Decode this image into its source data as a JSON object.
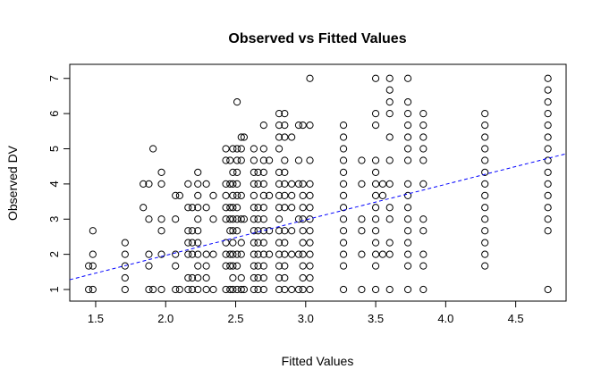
{
  "chart_data": {
    "type": "scatter",
    "title": "Observed vs Fitted Values",
    "xlabel": "Fitted Values",
    "ylabel": "Observed DV",
    "xlim": [
      1.315,
      4.86
    ],
    "ylim": [
      0.67,
      7.4
    ],
    "xticks": [
      1.5,
      2.0,
      2.5,
      3.0,
      3.5,
      4.0,
      4.5
    ],
    "xtick_labels": [
      "1.5",
      "2.0",
      "2.5",
      "3.0",
      "3.5",
      "4.0",
      "4.5"
    ],
    "yticks": [
      1,
      2,
      3,
      4,
      5,
      6,
      7
    ],
    "ytick_labels": [
      "1",
      "2",
      "3",
      "4",
      "5",
      "6",
      "7"
    ],
    "grid": false,
    "point_color": "#000000",
    "line_color": "#0000ff",
    "reference_line": {
      "intercept": -0.05,
      "slope": 1.01,
      "style": "dashed"
    },
    "columns": [
      {
        "x": 1.45,
        "y": [
          1.67,
          1
        ]
      },
      {
        "x": 1.48,
        "y": [
          2.67,
          2,
          1.67,
          1
        ]
      },
      {
        "x": 1.71,
        "y": [
          2.33,
          2,
          1.67,
          1.33,
          1
        ]
      },
      {
        "x": 1.84,
        "y": [
          4,
          3.33
        ]
      },
      {
        "x": 1.88,
        "y": [
          4,
          3,
          2,
          1.67,
          1
        ]
      },
      {
        "x": 1.91,
        "y": [
          5,
          1
        ]
      },
      {
        "x": 1.97,
        "y": [
          4.33,
          4,
          3,
          2.67,
          2,
          1
        ]
      },
      {
        "x": 2.07,
        "y": [
          3.67,
          3,
          2,
          1.67,
          1
        ]
      },
      {
        "x": 2.1,
        "y": [
          3.67,
          1
        ]
      },
      {
        "x": 2.16,
        "y": [
          4,
          3.33,
          2.67,
          2.33,
          2,
          1.33,
          1
        ]
      },
      {
        "x": 2.19,
        "y": [
          3.33,
          2.67,
          2.33,
          2,
          1.33,
          1
        ]
      },
      {
        "x": 2.23,
        "y": [
          4.33,
          4,
          3.67,
          3.33,
          3,
          2.67,
          2.33,
          2,
          1.67,
          1.33,
          1
        ]
      },
      {
        "x": 2.29,
        "y": [
          4,
          3.33,
          2,
          1.67,
          1.33,
          1
        ]
      },
      {
        "x": 2.34,
        "y": [
          3.67,
          3,
          2,
          1
        ]
      },
      {
        "x": 2.43,
        "y": [
          5,
          4.67,
          4,
          3.67,
          3.33,
          3,
          2.33,
          2,
          1.67,
          1
        ]
      },
      {
        "x": 2.46,
        "y": [
          4.67,
          4,
          3.33,
          3,
          2.67,
          2,
          1.67,
          1
        ]
      },
      {
        "x": 2.48,
        "y": [
          5,
          4.33,
          4,
          3.67,
          3.33,
          3,
          2.67,
          2.33,
          2,
          1.67,
          1.33,
          1
        ]
      },
      {
        "x": 2.51,
        "y": [
          6.33,
          5,
          4.67,
          4.33,
          4,
          3.67,
          3.33,
          3,
          2.67,
          2,
          1.67,
          1
        ]
      },
      {
        "x": 2.54,
        "y": [
          5.33,
          5,
          4.67,
          3.67,
          3,
          2.33,
          2,
          1.33,
          1
        ]
      },
      {
        "x": 2.56,
        "y": [
          5.33,
          3,
          1
        ]
      },
      {
        "x": 2.63,
        "y": [
          5,
          4.67,
          4.33,
          4,
          3.67,
          3.33,
          3,
          2.67,
          2.33,
          2,
          1.67,
          1.33,
          1
        ]
      },
      {
        "x": 2.66,
        "y": [
          4.33,
          4,
          3.33,
          3,
          2.67,
          2.33,
          2,
          1.67,
          1.33,
          1
        ]
      },
      {
        "x": 2.7,
        "y": [
          5.67,
          5,
          4.67,
          4.33,
          4,
          3.67,
          3.33,
          3,
          2.67,
          2.33,
          2,
          1.67,
          1.33,
          1
        ]
      },
      {
        "x": 2.74,
        "y": [
          4.67,
          3.67,
          2.67,
          2
        ]
      },
      {
        "x": 2.81,
        "y": [
          6,
          5.67,
          5.33,
          5,
          4.33,
          4,
          3.67,
          3.33,
          3,
          2.67,
          2.33,
          2,
          1.67,
          1.33,
          1
        ]
      },
      {
        "x": 2.85,
        "y": [
          6,
          5.67,
          5.33,
          4.67,
          4.33,
          4,
          3.67,
          3.33,
          2.67,
          2.33,
          2,
          1.67,
          1.33,
          1
        ]
      },
      {
        "x": 2.9,
        "y": [
          5.33,
          4,
          3.67,
          3.33,
          2.67,
          2,
          1
        ]
      },
      {
        "x": 2.95,
        "y": [
          5.67,
          4.67,
          4,
          3,
          2,
          1
        ]
      },
      {
        "x": 2.98,
        "y": [
          5.67,
          4,
          3.67,
          3.33,
          3,
          2.67,
          2.33,
          2,
          1.67,
          1.33,
          1
        ]
      },
      {
        "x": 3.03,
        "y": [
          7,
          5.67,
          4.67,
          4,
          3.67,
          3.33,
          3,
          2.67,
          2.33,
          2,
          1.67,
          1.33,
          1
        ]
      },
      {
        "x": 3.27,
        "y": [
          5.67,
          5.33,
          5,
          4.67,
          4.33,
          4,
          3.67,
          3.33,
          3,
          2.67,
          2.33,
          2,
          1.67,
          1
        ]
      },
      {
        "x": 3.4,
        "y": [
          4.67,
          4,
          3,
          2.67,
          2,
          1
        ]
      },
      {
        "x": 3.5,
        "y": [
          7,
          6,
          5.67,
          4.67,
          4.33,
          4,
          3.67,
          3.33,
          3,
          2.67,
          2.33,
          2,
          1.67,
          1
        ]
      },
      {
        "x": 3.55,
        "y": [
          4,
          3.67,
          2
        ]
      },
      {
        "x": 3.6,
        "y": [
          7,
          6.67,
          6.33,
          6,
          5.33,
          4.67,
          4,
          3.33,
          3,
          2.33,
          2,
          1
        ]
      },
      {
        "x": 3.73,
        "y": [
          7,
          6.33,
          6,
          5.67,
          5.33,
          5,
          4.67,
          4,
          3.67,
          3.33,
          3,
          2.67,
          2.33,
          2,
          1.67,
          1
        ]
      },
      {
        "x": 3.84,
        "y": [
          6,
          5.67,
          5.33,
          5,
          4.67,
          4,
          3,
          2.67,
          2,
          1.67,
          1
        ]
      },
      {
        "x": 4.28,
        "y": [
          6,
          5.67,
          5.33,
          5,
          4.67,
          4.33,
          4,
          3.67,
          3.33,
          3,
          2.67,
          2.33,
          2,
          1.67
        ]
      },
      {
        "x": 4.73,
        "y": [
          7,
          6.67,
          6.33,
          6,
          5.67,
          5.33,
          5,
          4.67,
          4.33,
          4,
          3.67,
          3.33,
          3,
          2.67,
          1
        ]
      }
    ]
  }
}
